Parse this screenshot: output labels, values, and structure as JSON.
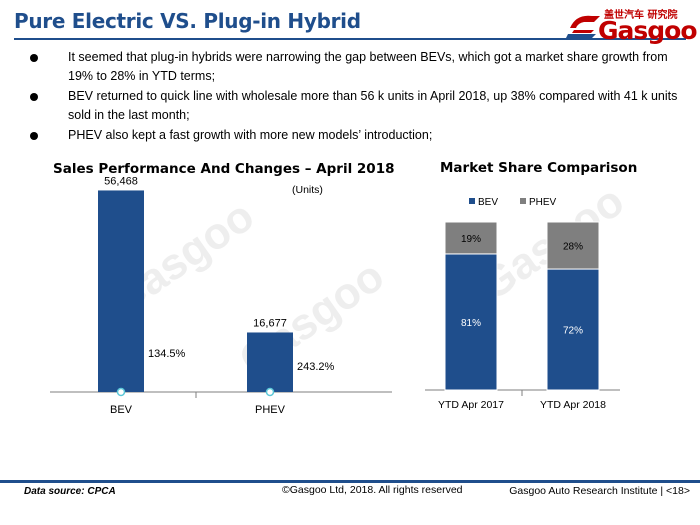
{
  "header": {
    "title": "Pure Electric VS. Plug-in Hybrid",
    "logo_cn": "盖世汽车 研究院",
    "logo_word": "Gasgoo"
  },
  "bullets": [
    "It seemed that plug-in hybrids were narrowing the gap between BEVs, which got a market share growth from 19% to 28% in YTD terms;",
    "BEV returned to quick line with wholesale more than 56 k units in April 2018, up 38% compared with 41 k units sold in the last month;",
    "PHEV also kept a fast growth with more new models’ introduction;"
  ],
  "watermark": "Gasgoo",
  "chart_data": [
    {
      "type": "bar",
      "title": "Sales Performance And Changes – April 2018",
      "unit_label": "(Units)",
      "categories": [
        "BEV",
        "PHEV"
      ],
      "values": [
        56468,
        16677
      ],
      "value_labels": [
        "56,468",
        "16,677"
      ],
      "change_labels": [
        "134.5%",
        "243.2%"
      ],
      "ylim": [
        0,
        65000
      ],
      "colors": {
        "bar": "#1f4e8c",
        "marker": "#5bc8d8"
      }
    },
    {
      "type": "bar",
      "stacked": true,
      "title": "Market Share Comparison",
      "categories": [
        "YTD Apr 2017",
        "YTD Apr 2018"
      ],
      "series": [
        {
          "name": "BEV",
          "values": [
            81,
            72
          ],
          "labels": [
            "81%",
            "72%"
          ],
          "color": "#1f4e8c"
        },
        {
          "name": "PHEV",
          "values": [
            19,
            28
          ],
          "labels": [
            "19%",
            "28%"
          ],
          "color": "#7f7f7f"
        }
      ],
      "ylim": [
        0,
        100
      ],
      "legend": "top-left"
    }
  ],
  "footer": {
    "source": "Data source: CPCA",
    "copyright": "©Gasgoo Ltd, 2018.  All rights reserved",
    "institute": "Gasgoo Auto Research Institute  |  <18>"
  }
}
